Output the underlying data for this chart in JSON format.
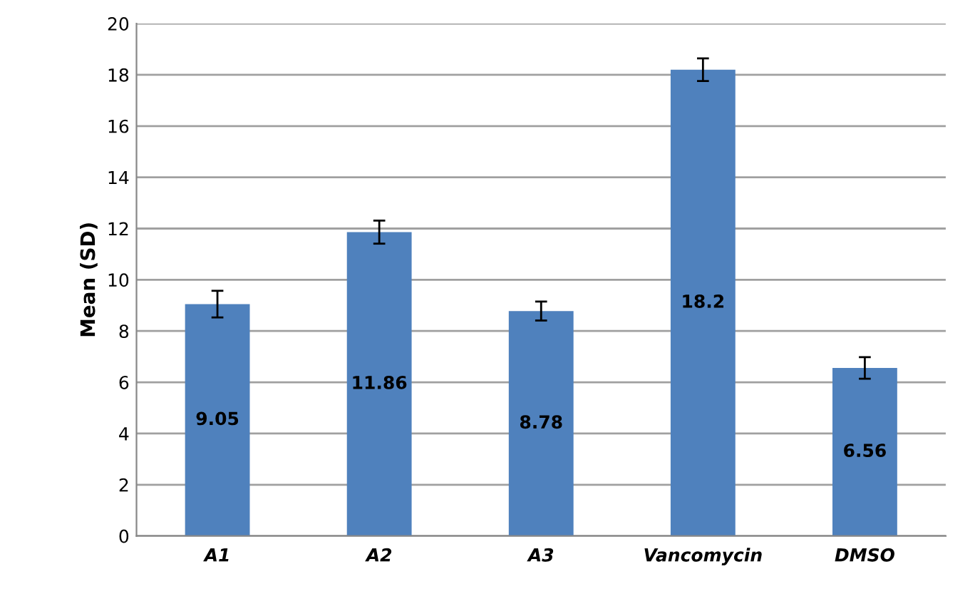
{
  "chart_data": {
    "type": "bar",
    "ylabel": "Mean (SD)",
    "categories": [
      "A1",
      "A2",
      "A3",
      "Vancomycin",
      "DMSO"
    ],
    "values": [
      9.05,
      11.86,
      8.78,
      18.2,
      6.56
    ],
    "errors": [
      0.52,
      0.45,
      0.37,
      0.44,
      0.42
    ],
    "color": "#4f81bd",
    "ylim": [
      0,
      20
    ],
    "yticks": [
      0,
      2,
      4,
      6,
      8,
      10,
      12,
      14,
      16,
      18,
      20
    ],
    "grid": "y",
    "data_labels": true
  }
}
